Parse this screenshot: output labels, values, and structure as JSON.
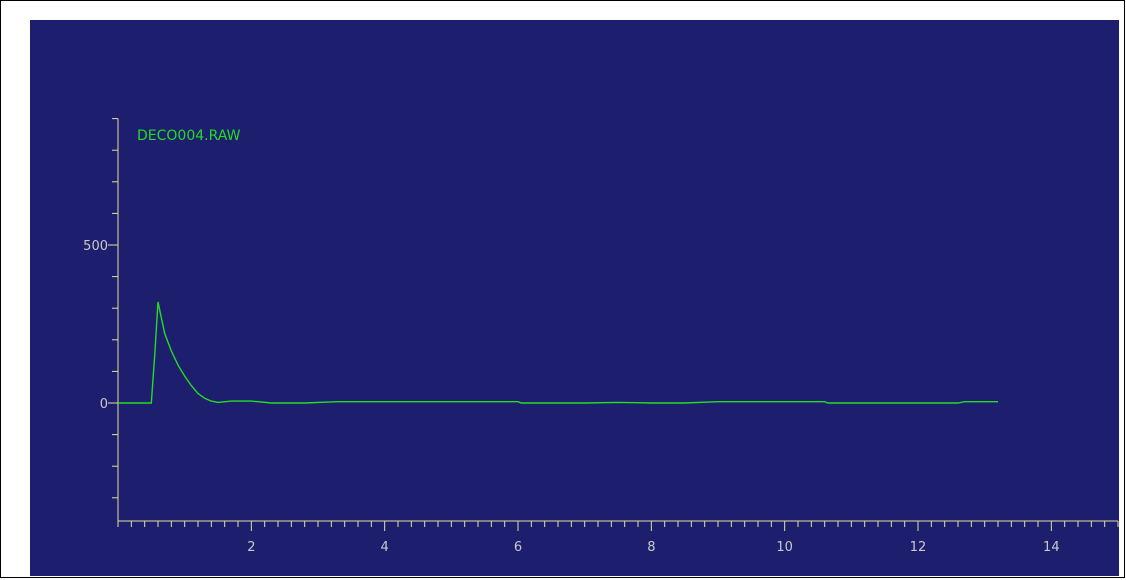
{
  "chart_data": {
    "type": "line",
    "title": "",
    "xlabel": "",
    "ylabel": "",
    "trace_label": "DECO004.RAW",
    "xlim": [
      0,
      15
    ],
    "ylim": [
      -375,
      900
    ],
    "x_ticks": [
      "2",
      "4",
      "6",
      "8",
      "10",
      "12",
      "14"
    ],
    "y_ticks": [
      "500",
      "0"
    ],
    "grid": false,
    "colors": {
      "background": "#1e1e6e",
      "axis": "#e0e0a0",
      "trace": "#22dd22",
      "tick_label": "#c9c9c9"
    },
    "series": [
      {
        "values_x": [
          0,
          0.35,
          0.5,
          0.55,
          0.6,
          0.65,
          0.7,
          0.8,
          0.9,
          1.0,
          1.1,
          1.2,
          1.3,
          1.4,
          1.5,
          1.7,
          2.0,
          2.3,
          2.8,
          3.3,
          4.0,
          5.0,
          6.0,
          6.05,
          7.0,
          7.5,
          8.0,
          8.5,
          9.0,
          10.0,
          10.6,
          10.65,
          11.5,
          12.0,
          12.6,
          12.7,
          13.2
        ],
        "values_y": [
          0,
          0,
          0,
          150,
          320,
          270,
          220,
          165,
          120,
          85,
          55,
          30,
          15,
          6,
          2,
          6,
          6,
          0,
          0,
          4,
          4,
          4,
          4,
          0,
          0,
          2,
          0,
          0,
          4,
          4,
          4,
          0,
          0,
          0,
          0,
          4,
          4
        ]
      }
    ]
  }
}
